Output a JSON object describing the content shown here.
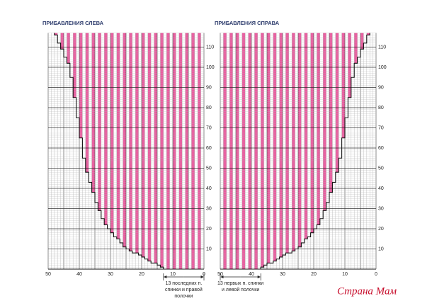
{
  "charts": [
    {
      "title": "ПРИБАВЛЕНИЯ СЛЕВА",
      "row_labels": [
        10,
        20,
        30,
        40,
        50,
        60,
        70,
        80,
        90,
        100,
        110
      ],
      "column_labels": [
        50,
        40,
        30,
        20,
        10,
        0
      ],
      "note": [
        "13 последних п.",
        "спинки и правой",
        "полочки"
      ]
    },
    {
      "title": "ПРИБАВЛЕНИЯ СПРАВА",
      "row_labels": [
        10,
        20,
        30,
        40,
        50,
        60,
        70,
        80,
        90,
        100,
        110
      ],
      "column_labels": [
        50,
        40,
        30,
        20,
        10,
        0
      ],
      "note": [
        "13 первых п. спинки",
        "и левой полочки"
      ]
    }
  ],
  "watermark": "Страна Мам"
}
